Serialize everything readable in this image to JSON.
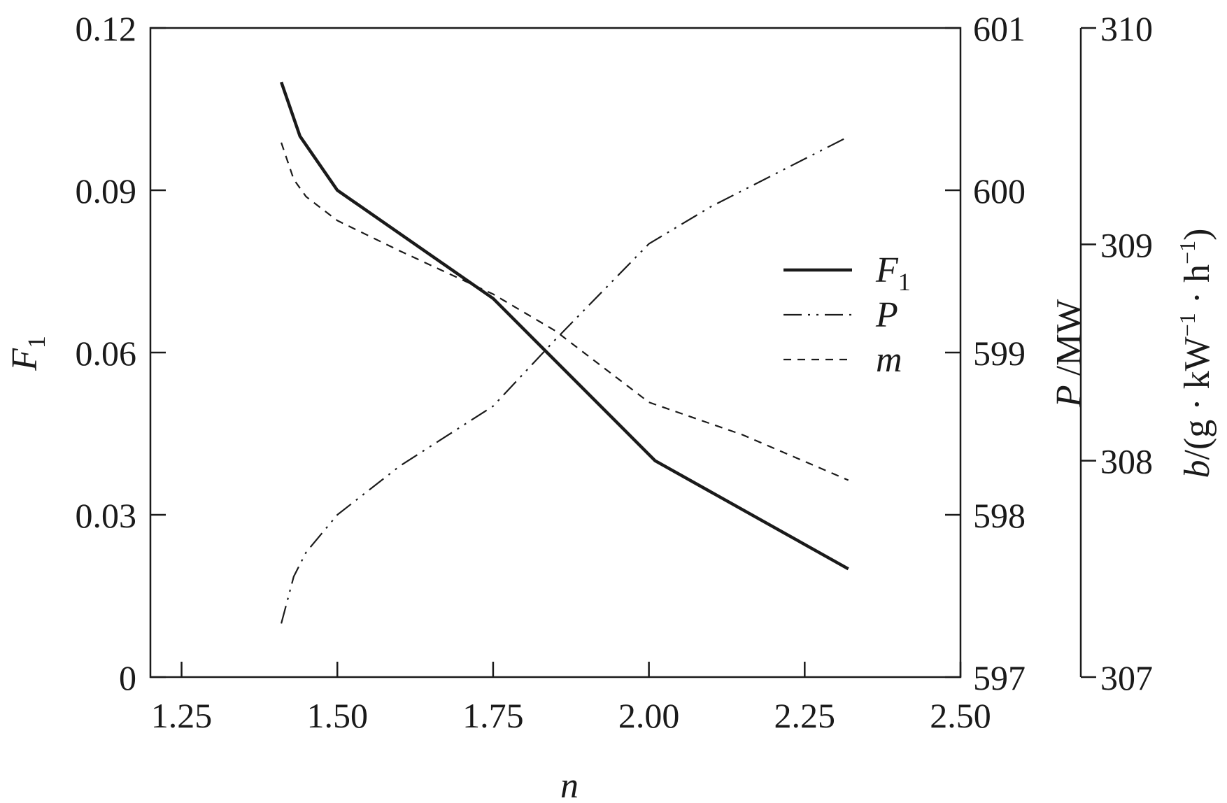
{
  "chart_data": {
    "type": "line",
    "x_axis": {
      "label": "n",
      "range": [
        1.2,
        2.5
      ],
      "ticks": [
        1.25,
        1.5,
        1.75,
        2.0,
        2.25,
        2.5
      ],
      "tick_labels": [
        "1.25",
        "1.50",
        "1.75",
        "2.00",
        "2.25",
        "2.50"
      ]
    },
    "y_axes": [
      {
        "id": "F1",
        "label_main": "F",
        "label_sub": "1",
        "side": "left",
        "range": [
          0,
          0.12
        ],
        "ticks": [
          0,
          0.03,
          0.06,
          0.09,
          0.12
        ],
        "tick_labels": [
          "0",
          "0.03",
          "0.06",
          "0.09",
          "0.12"
        ]
      },
      {
        "id": "P",
        "label_main": "P",
        "label_rest": " /MW",
        "side": "right",
        "range": [
          597,
          601
        ],
        "ticks": [
          597,
          598,
          599,
          600,
          601
        ],
        "tick_labels": [
          "597",
          "598",
          "599",
          "600",
          "601"
        ]
      },
      {
        "id": "b",
        "label_main": "b",
        "label_rest": "/(g · kW",
        "label_sup1": "−1",
        "label_mid": " · h",
        "label_sup2": "−1",
        "label_end": ")",
        "side": "right-outer",
        "range": [
          307,
          310
        ],
        "ticks": [
          307,
          308,
          309,
          310
        ],
        "tick_labels": [
          "307",
          "308",
          "309",
          "310"
        ]
      }
    ],
    "series": [
      {
        "name": "F",
        "name_sub": "1",
        "axis": "F1",
        "style": "solid",
        "x": [
          1.41,
          1.44,
          1.5,
          1.75,
          2.01,
          2.32
        ],
        "y": [
          0.11,
          0.1,
          0.09,
          0.07,
          0.04,
          0.02
        ]
      },
      {
        "name": "P",
        "axis": "P",
        "style": "dash-dot-dot",
        "x": [
          1.41,
          1.43,
          1.45,
          1.5,
          1.6,
          1.75,
          1.85,
          2.0,
          2.1,
          2.32
        ],
        "y": [
          597.33,
          597.62,
          597.77,
          598.0,
          598.3,
          598.67,
          599.08,
          599.67,
          599.9,
          600.33
        ]
      },
      {
        "name": "m",
        "axis": "b",
        "style": "dashed",
        "x": [
          1.41,
          1.43,
          1.45,
          1.5,
          1.6,
          1.75,
          1.85,
          2.0,
          2.15,
          2.32
        ],
        "y": [
          309.47,
          309.3,
          309.22,
          309.11,
          308.97,
          308.77,
          308.6,
          308.27,
          308.12,
          307.91
        ]
      }
    ],
    "legend": {
      "position": "right-center"
    },
    "grid": false
  }
}
